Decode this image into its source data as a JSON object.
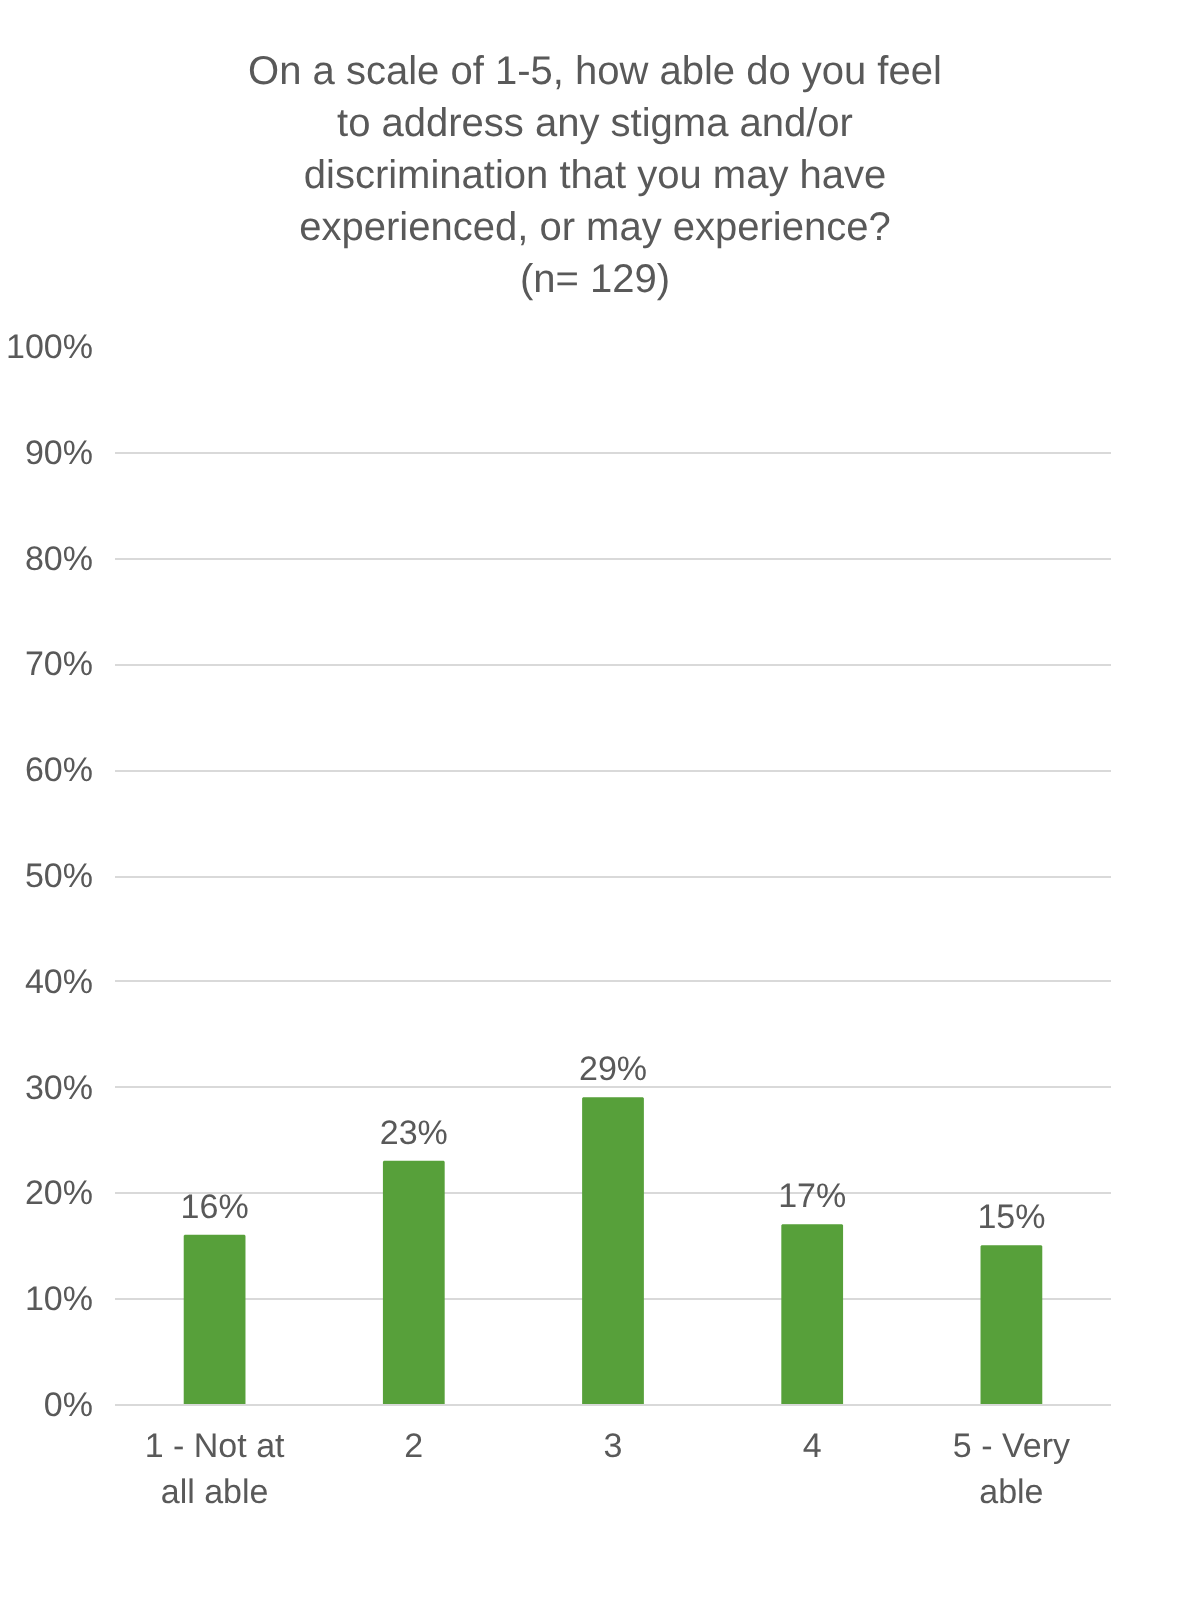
{
  "chart_data": {
    "type": "bar",
    "title": "On a scale of 1-5, how able do you feel to address any stigma and/or discrimination that you may have experienced, or may experience?",
    "subtitle": "(n= 129)",
    "categories": [
      "1 - Not at all able",
      "2",
      "3",
      "4",
      "5 - Very able"
    ],
    "values": [
      16,
      23,
      29,
      17,
      15
    ],
    "value_labels": [
      "16%",
      "23%",
      "29%",
      "17%",
      "15%"
    ],
    "color": "#57a03a",
    "ylim": [
      0,
      100
    ],
    "yticks": [
      {
        "value": 0,
        "label": "0%"
      },
      {
        "value": 10,
        "label": "10%"
      },
      {
        "value": 20,
        "label": "20%"
      },
      {
        "value": 30,
        "label": "30%"
      },
      {
        "value": 40,
        "label": "40%"
      },
      {
        "value": 50,
        "label": "50%"
      },
      {
        "value": 60,
        "label": "60%"
      },
      {
        "value": 70,
        "label": "70%"
      },
      {
        "value": 80,
        "label": "80%"
      },
      {
        "value": 90,
        "label": "90%"
      },
      {
        "value": 100,
        "label": "100%"
      }
    ],
    "grid": "y"
  }
}
